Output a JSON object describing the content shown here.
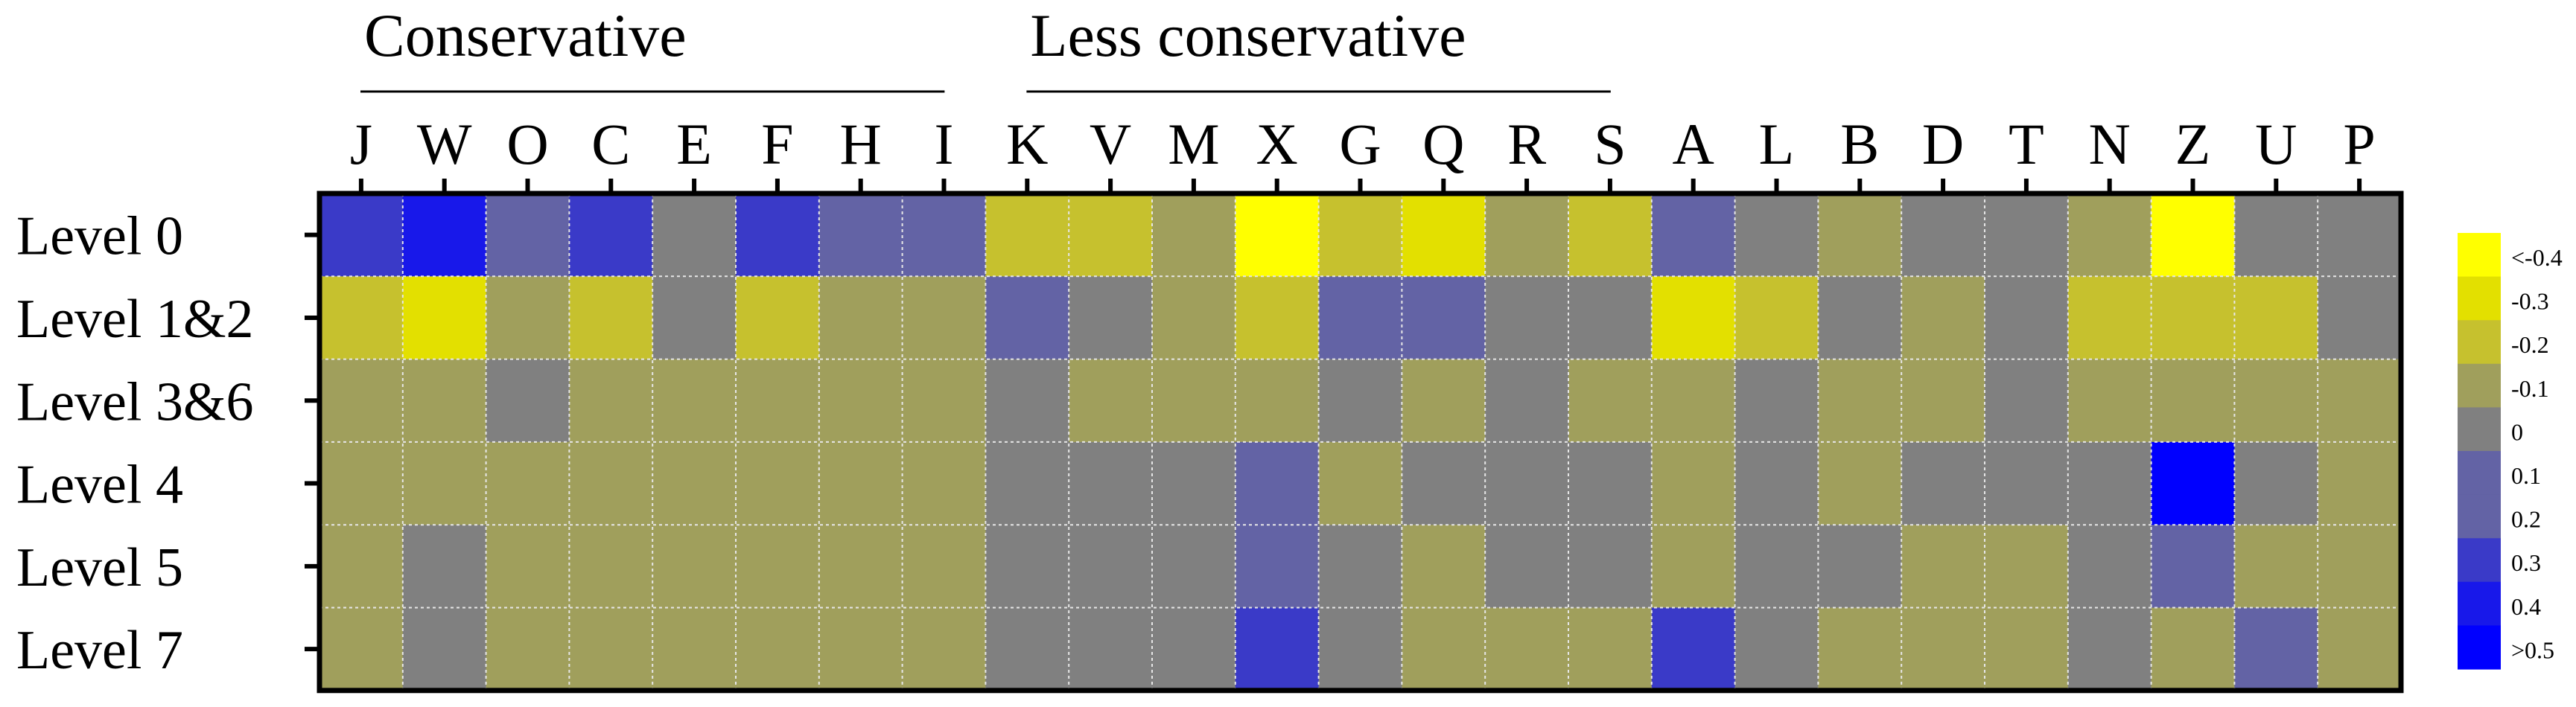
{
  "chart_data": {
    "type": "heatmap",
    "title": "",
    "groups": [
      {
        "label": "Conservative",
        "columns": [
          "J",
          "W",
          "O",
          "C",
          "E",
          "F",
          "H",
          "I"
        ]
      },
      {
        "label": "Less conservative",
        "columns": [
          "K",
          "V",
          "M",
          "X",
          "G",
          "Q",
          "R",
          "S"
        ]
      }
    ],
    "columns": [
      "J",
      "W",
      "O",
      "C",
      "E",
      "F",
      "H",
      "I",
      "K",
      "V",
      "M",
      "X",
      "G",
      "Q",
      "R",
      "S",
      "A",
      "L",
      "B",
      "D",
      "T",
      "N",
      "Z",
      "U",
      "P"
    ],
    "rows": [
      "Level 0",
      "Level 1&2",
      "Level 3&6",
      "Level 4",
      "Level 5",
      "Level 7"
    ],
    "values": [
      [
        0.3,
        0.4,
        0.2,
        0.3,
        0,
        0.3,
        0.2,
        0.2,
        -0.2,
        -0.2,
        -0.1,
        -0.4,
        -0.2,
        -0.3,
        -0.1,
        -0.2,
        0.2,
        0,
        -0.1,
        0,
        0,
        -0.1,
        -0.4,
        0,
        0
      ],
      [
        -0.2,
        -0.3,
        -0.1,
        -0.2,
        0,
        -0.2,
        -0.1,
        -0.1,
        0.2,
        0,
        -0.1,
        -0.2,
        0.2,
        0.2,
        0,
        0,
        -0.3,
        -0.2,
        0,
        -0.1,
        0,
        -0.2,
        -0.2,
        -0.2,
        0
      ],
      [
        -0.1,
        -0.1,
        0,
        -0.1,
        -0.1,
        -0.1,
        -0.1,
        -0.1,
        0,
        -0.1,
        -0.1,
        -0.1,
        0,
        -0.1,
        0,
        -0.1,
        -0.1,
        0,
        -0.1,
        -0.1,
        0,
        -0.1,
        -0.1,
        -0.1,
        -0.1
      ],
      [
        -0.1,
        -0.1,
        -0.1,
        -0.1,
        -0.1,
        -0.1,
        -0.1,
        -0.1,
        0,
        0,
        0,
        0.2,
        -0.1,
        0,
        0,
        0,
        -0.1,
        0,
        -0.1,
        0,
        0,
        0,
        0.5,
        0,
        -0.1
      ],
      [
        -0.1,
        0,
        -0.1,
        -0.1,
        -0.1,
        -0.1,
        -0.1,
        -0.1,
        0,
        0,
        0,
        0.2,
        0,
        -0.1,
        0,
        0,
        -0.1,
        0,
        0,
        -0.1,
        -0.1,
        0,
        0.2,
        -0.1,
        -0.1
      ],
      [
        -0.1,
        0,
        -0.1,
        -0.1,
        -0.1,
        -0.1,
        -0.1,
        -0.1,
        0,
        0,
        0,
        0.3,
        0,
        -0.1,
        -0.1,
        -0.1,
        0.3,
        0,
        -0.1,
        -0.1,
        -0.1,
        0,
        -0.1,
        0.2,
        -0.1
      ]
    ],
    "legend": {
      "placement": "right",
      "levels": [
        {
          "label": "<-0.4",
          "value": -0.4,
          "color": "#ffff00"
        },
        {
          "label": "-0.3",
          "value": -0.3,
          "color": "#e3e000"
        },
        {
          "label": "-0.2",
          "value": -0.2,
          "color": "#c6c12e"
        },
        {
          "label": "-0.1",
          "value": -0.1,
          "color": "#a09f5c"
        },
        {
          "label": "0",
          "value": 0,
          "color": "#808080"
        },
        {
          "label": "0.1",
          "value": 0.1,
          "color": "#6363a5"
        },
        {
          "label": "0.2",
          "value": 0.2,
          "color": "#6363a5"
        },
        {
          "label": "0.3",
          "value": 0.3,
          "color": "#3a3ac8"
        },
        {
          "label": "0.4",
          "value": 0.4,
          "color": "#1818ea"
        },
        {
          "label": ">0.5",
          "value": 0.5,
          "color": "#0000ff"
        }
      ]
    },
    "grid": true
  }
}
